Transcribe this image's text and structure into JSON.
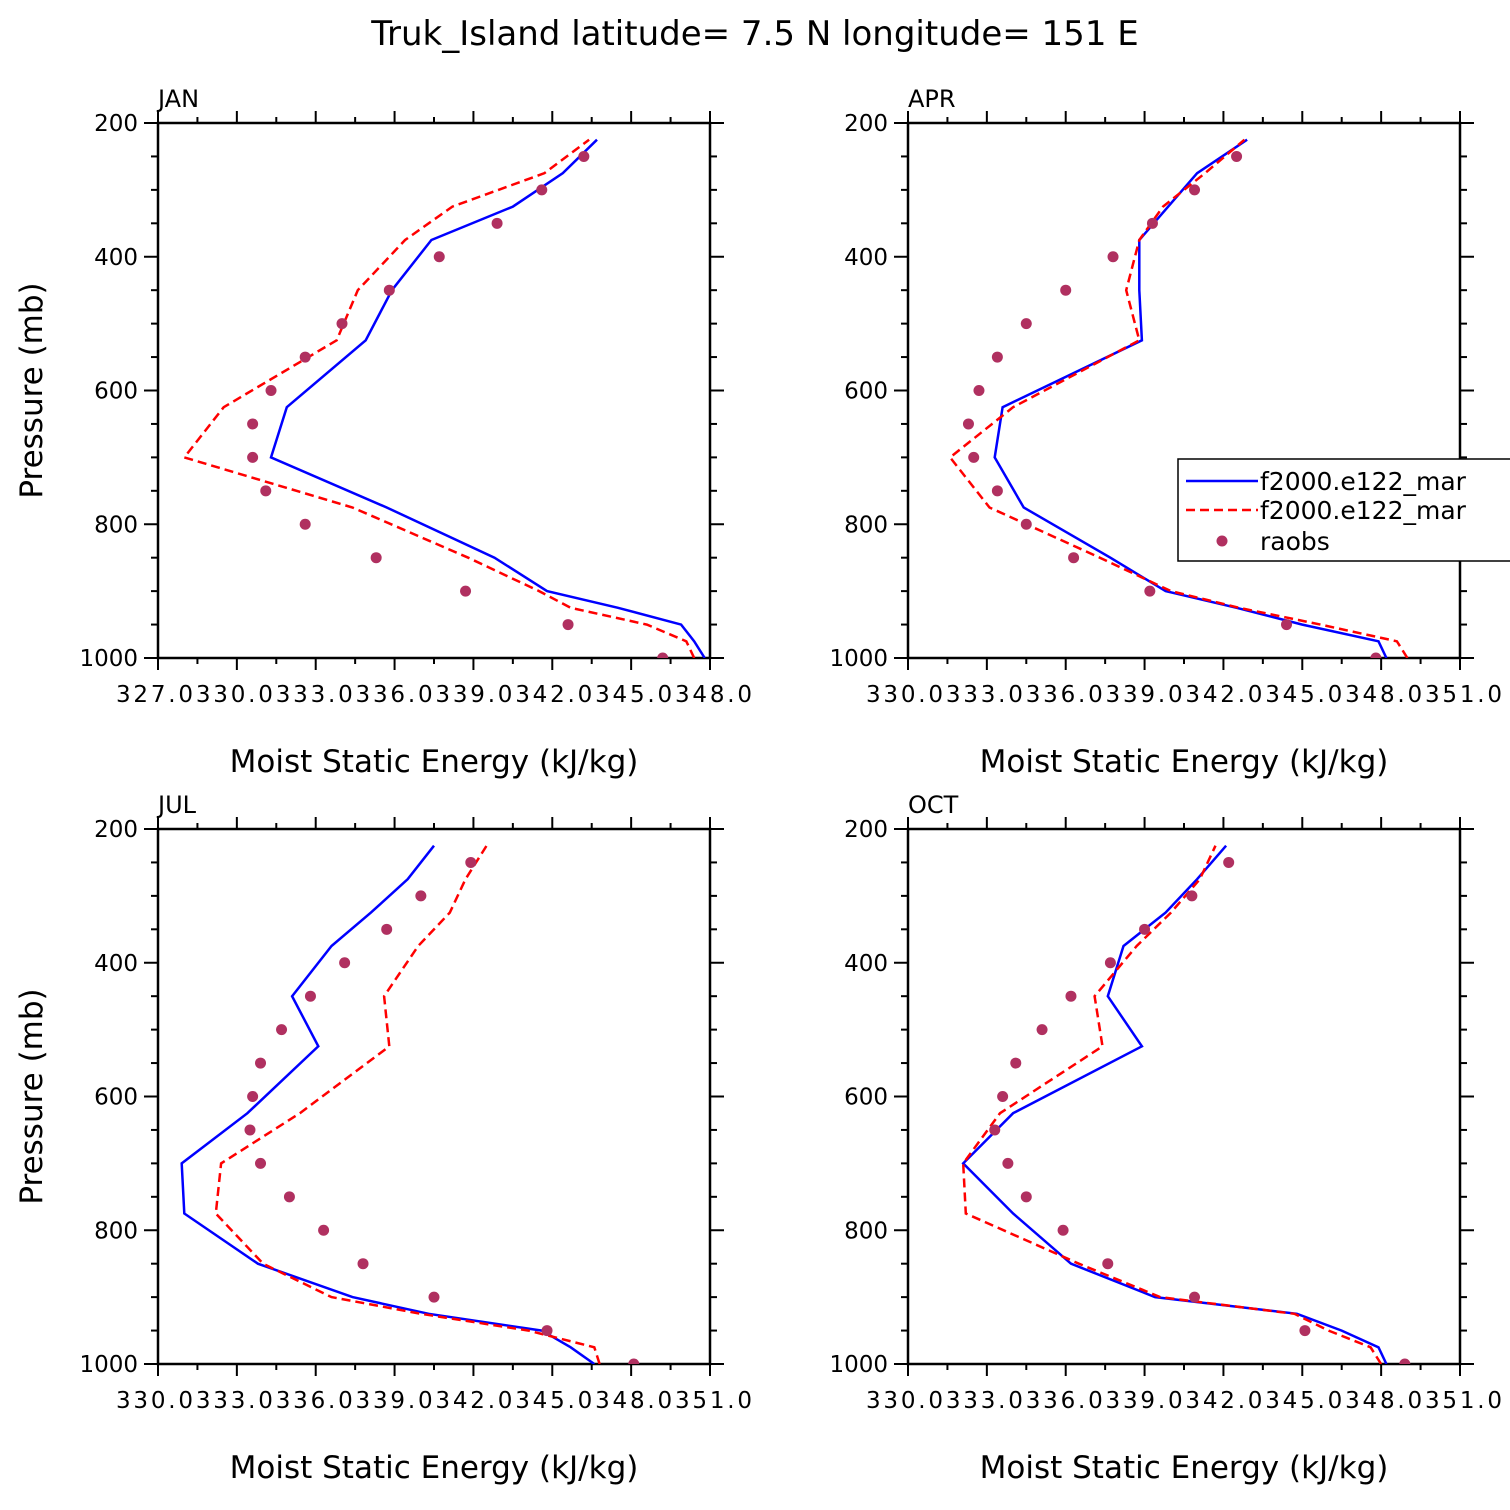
{
  "chart_data": {
    "title": "Truk_Island  latitude= 7.5 N longitude= 151 E",
    "type": "line",
    "colors": {
      "series_1": "#0000ff",
      "series_2": "#ff0000",
      "raobs": "#b03060"
    },
    "legend": {
      "position": "right of APR panel",
      "entries": [
        "f2000.e122_mar",
        "f2000.e122_mar",
        "raobs"
      ]
    },
    "panels": [
      {
        "title": "JAN",
        "xlabel": "Moist Static Energy (kJ/kg)",
        "ylabel": "Pressure (mb)",
        "xlim": [
          327.0,
          348.0
        ],
        "ylim": [
          1000,
          200
        ],
        "xticks": [
          "327.0",
          "330.0",
          "333.0",
          "336.0",
          "339.0",
          "342.0",
          "345.0",
          "348.0"
        ],
        "yticks": [
          "200",
          "400",
          "600",
          "800",
          "1000"
        ],
        "series": [
          {
            "name": "f2000.e122_mar",
            "style": "solid",
            "pressure": [
              1000,
              975,
              950,
              925,
              900,
              850,
              775,
              700,
              625,
              525,
              450,
              375,
              325,
              275,
              225
            ],
            "values": [
              347.8,
              347.4,
              346.9,
              344.5,
              341.8,
              339.8,
              335.7,
              331.3,
              331.9,
              334.9,
              335.9,
              337.4,
              340.5,
              342.4,
              343.7
            ]
          },
          {
            "name": "f2000.e122_mar",
            "style": "dashed",
            "pressure": [
              1000,
              975,
              950,
              925,
              900,
              850,
              775,
              700,
              625,
              525,
              450,
              375,
              325,
              275,
              225
            ],
            "values": [
              347.4,
              347.1,
              345.6,
              342.7,
              341.5,
              338.8,
              334.4,
              328.0,
              329.5,
              333.8,
              334.6,
              336.4,
              338.2,
              341.7,
              343.4
            ]
          },
          {
            "name": "raobs",
            "style": "markers",
            "pressure": [
              1000,
              950,
              900,
              850,
              800,
              750,
              700,
              650,
              600,
              550,
              500,
              450,
              400,
              350,
              300,
              250
            ],
            "values": [
              346.2,
              342.6,
              338.7,
              335.3,
              332.6,
              331.1,
              330.6,
              330.6,
              331.3,
              332.6,
              334.0,
              335.8,
              337.7,
              339.9,
              341.6,
              343.2
            ]
          }
        ]
      },
      {
        "title": "APR",
        "xlabel": "Moist Static Energy (kJ/kg)",
        "ylabel": "",
        "xlim": [
          330.0,
          351.0
        ],
        "ylim": [
          1000,
          200
        ],
        "xticks": [
          "330.0",
          "333.0",
          "336.0",
          "339.0",
          "342.0",
          "345.0",
          "348.0",
          "351.0"
        ],
        "yticks": [
          "200",
          "400",
          "600",
          "800",
          "1000"
        ],
        "legend": true,
        "series": [
          {
            "name": "f2000.e122_mar",
            "style": "solid",
            "pressure": [
              1000,
              975,
              950,
              925,
              900,
              850,
              775,
              700,
              625,
              525,
              450,
              375,
              325,
              275,
              225
            ],
            "values": [
              348.2,
              347.9,
              345.0,
              342.5,
              339.8,
              337.7,
              334.4,
              333.3,
              333.6,
              338.9,
              338.8,
              338.8,
              339.9,
              341.0,
              342.9
            ]
          },
          {
            "name": "f2000.e122_mar",
            "style": "dashed",
            "pressure": [
              1000,
              975,
              950,
              925,
              900,
              850,
              775,
              700,
              625,
              525,
              450,
              375,
              325,
              275,
              225
            ],
            "values": [
              349.0,
              348.6,
              345.7,
              342.6,
              340.0,
              337.3,
              333.1,
              331.6,
              334.0,
              338.8,
              338.3,
              338.8,
              339.7,
              341.3,
              342.8
            ]
          },
          {
            "name": "raobs",
            "style": "markers",
            "pressure": [
              1000,
              950,
              900,
              850,
              800,
              750,
              700,
              650,
              600,
              550,
              500,
              450,
              400,
              350,
              300,
              250
            ],
            "values": [
              347.8,
              344.4,
              339.2,
              336.3,
              334.5,
              333.4,
              332.5,
              332.3,
              332.7,
              333.4,
              334.5,
              336.0,
              337.8,
              339.3,
              340.9,
              342.5
            ]
          }
        ]
      },
      {
        "title": "JUL",
        "xlabel": "Moist Static Energy (kJ/kg)",
        "ylabel": "Pressure (mb)",
        "xlim": [
          330.0,
          351.0
        ],
        "ylim": [
          1000,
          200
        ],
        "xticks": [
          "330.0",
          "333.0",
          "336.0",
          "339.0",
          "342.0",
          "345.0",
          "348.0",
          "351.0"
        ],
        "yticks": [
          "200",
          "400",
          "600",
          "800",
          "1000"
        ],
        "series": [
          {
            "name": "f2000.e122_mar",
            "style": "solid",
            "pressure": [
              1000,
              975,
              950,
              925,
              900,
              850,
              775,
              700,
              625,
              525,
              450,
              375,
              325,
              275,
              225
            ],
            "values": [
              346.6,
              345.7,
              344.6,
              340.3,
              337.4,
              333.8,
              331.0,
              330.9,
              333.4,
              336.1,
              335.1,
              336.6,
              338.1,
              339.5,
              340.5
            ]
          },
          {
            "name": "f2000.e122_mar",
            "style": "dashed",
            "pressure": [
              1000,
              975,
              950,
              925,
              900,
              850,
              775,
              700,
              625,
              525,
              450,
              375,
              325,
              275,
              225
            ],
            "values": [
              346.8,
              346.6,
              344.1,
              340.0,
              336.6,
              334.0,
              332.2,
              332.4,
              335.4,
              338.8,
              338.6,
              339.9,
              341.1,
              341.7,
              342.5
            ]
          },
          {
            "name": "raobs",
            "style": "markers",
            "pressure": [
              1000,
              950,
              900,
              850,
              800,
              750,
              700,
              650,
              600,
              550,
              500,
              450,
              400,
              350,
              300,
              250
            ],
            "values": [
              348.1,
              344.8,
              340.5,
              337.8,
              336.3,
              335.0,
              333.9,
              333.5,
              333.6,
              333.9,
              334.7,
              335.8,
              337.1,
              338.7,
              340.0,
              341.9
            ]
          }
        ]
      },
      {
        "title": "OCT",
        "xlabel": "Moist Static Energy (kJ/kg)",
        "ylabel": "",
        "xlim": [
          330.0,
          351.0
        ],
        "ylim": [
          1000,
          200
        ],
        "xticks": [
          "330.0",
          "333.0",
          "336.0",
          "339.0",
          "342.0",
          "345.0",
          "348.0",
          "351.0"
        ],
        "yticks": [
          "200",
          "400",
          "600",
          "800",
          "1000"
        ],
        "series": [
          {
            "name": "f2000.e122_mar",
            "style": "solid",
            "pressure": [
              1000,
              975,
              950,
              925,
              900,
              850,
              775,
              700,
              625,
              525,
              450,
              375,
              325,
              275,
              225
            ],
            "values": [
              348.2,
              347.9,
              346.5,
              344.8,
              339.4,
              336.2,
              334.0,
              332.1,
              334.0,
              338.9,
              337.6,
              338.2,
              339.8,
              341.0,
              342.1
            ]
          },
          {
            "name": "f2000.e122_mar",
            "style": "dashed",
            "pressure": [
              1000,
              975,
              950,
              925,
              900,
              850,
              775,
              700,
              625,
              525,
              450,
              375,
              325,
              275,
              225
            ],
            "values": [
              348.0,
              347.6,
              346.0,
              344.7,
              339.6,
              336.5,
              332.2,
              332.1,
              333.5,
              337.4,
              337.1,
              338.7,
              340.0,
              341.1,
              341.7
            ]
          },
          {
            "name": "raobs",
            "style": "markers",
            "pressure": [
              1000,
              950,
              900,
              850,
              800,
              750,
              700,
              650,
              600,
              550,
              500,
              450,
              400,
              350,
              300,
              250
            ],
            "values": [
              348.9,
              345.1,
              340.9,
              337.6,
              335.9,
              334.5,
              333.8,
              333.3,
              333.6,
              334.1,
              335.1,
              336.2,
              337.7,
              339.0,
              340.8,
              342.2
            ]
          }
        ]
      }
    ]
  }
}
